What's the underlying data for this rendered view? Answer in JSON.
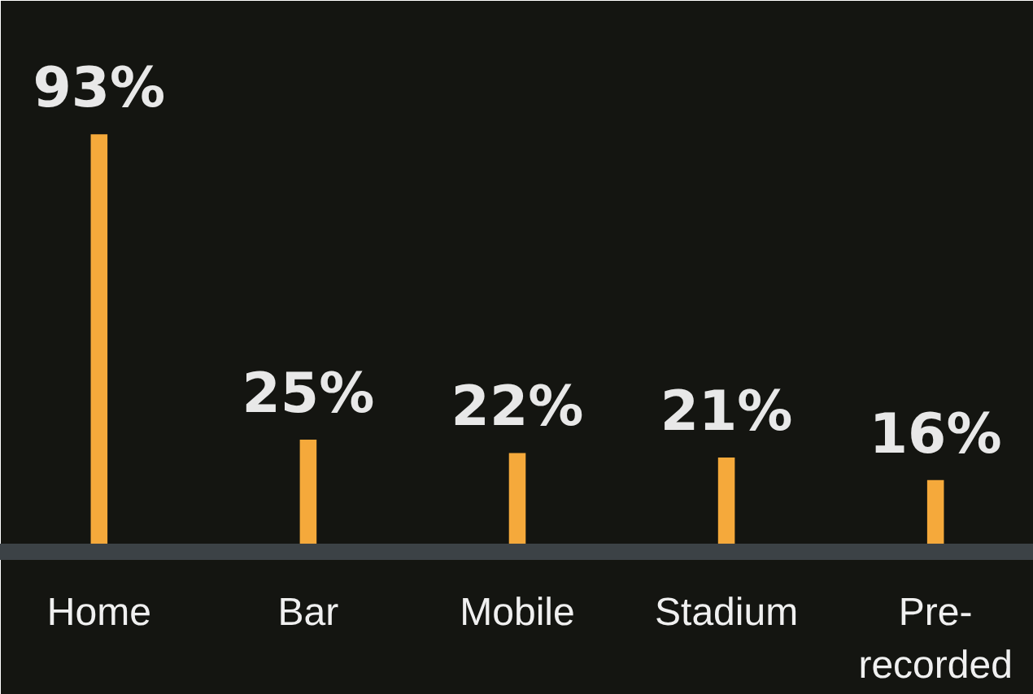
{
  "chart_data": {
    "type": "bar",
    "categories": [
      "Home",
      "Bar",
      "Mobile",
      "Stadium",
      "Pre-recorded"
    ],
    "values": [
      93,
      25,
      22,
      21,
      16
    ],
    "value_labels": [
      "93%",
      "25%",
      "22%",
      "21%",
      "16%"
    ],
    "color": "#f5a93b",
    "grid": false
  }
}
